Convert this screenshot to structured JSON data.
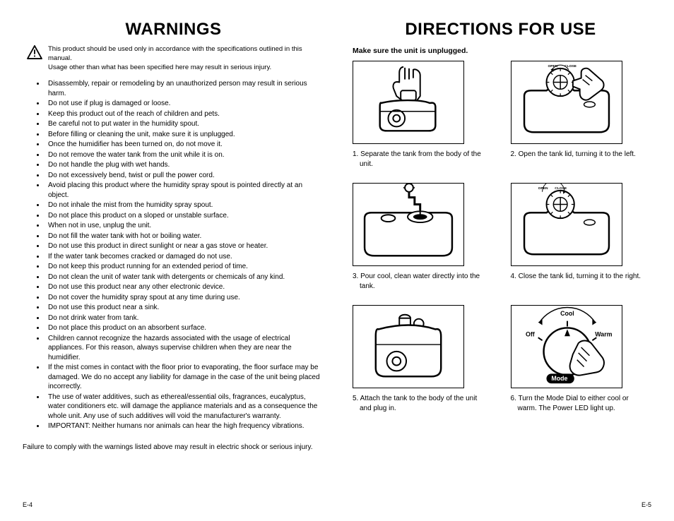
{
  "left": {
    "title": "WARNINGS",
    "intro_line1": "This product should be used only in accordance with the specifications outlined in this manual.",
    "intro_line2": "Usage other than what has been specified here may result in serious injury.",
    "bullets": [
      "Disassembly, repair or remodeling by an unauthorized person may result in serious harm.",
      "Do not use if plug is damaged or loose.",
      "Keep this product out of the reach of children and pets.",
      "Be careful not to put water in the humidity spout.",
      "Before filling or cleaning the unit, make sure it is unplugged.",
      "Once the humidifier has been turned on, do not move it.",
      "Do not remove the water tank from the unit while it is on.",
      "Do not handle the plug with wet hands.",
      "Do not excessively bend, twist or pull the power cord.",
      "Avoid placing this product where the humidity spray spout is pointed directly at an object.",
      "Do not inhale the mist from the humidity spray spout.",
      "Do not place this product on a sloped or unstable surface.",
      "When not in use, unplug the unit.",
      "Do not fill the water tank with hot or boiling water.",
      "Do not use this product in direct sunlight or near a gas stove or heater.",
      "If the water tank becomes cracked or damaged do not use.",
      "Do not keep this product running for an extended period of time.",
      "Do not clean the unit of water tank with detergents or chemicals of any kind.",
      "Do not use this product near any other electronic device.",
      "Do not cover the humidity spray spout at any time during use.",
      "Do not use this product near a sink.",
      "Do not drink water from tank.",
      "Do not place this product on an absorbent surface.",
      "Children cannot recognize the hazards associated with the usage of electrical appliances. For this reason, always supervise children when they are near the humidifier.",
      "If the mist comes in contact with the floor prior to evaporating, the floor surface may be damaged. We do no accept any liability for damage in the case of the unit being placed incorrectly.",
      "The use of water additives, such as ethereal/essential oils, fragrances, eucalyptus, water conditioners etc. will damage the appliance materials and as a consequence the whole unit. Any use of such additives will void the manufacturer's warranty.",
      "IMPORTANT: Neither humans nor animals can hear the high frequency vibrations."
    ],
    "footer": "Failure to comply with the warnings listed above may result in electric shock or serious injury.",
    "page_num": "E-4"
  },
  "right": {
    "title": "DIRECTIONS FOR USE",
    "subtitle": "Make sure the unit is unplugged.",
    "steps": [
      {
        "num": "1.",
        "text": "Separate the tank from the body of the unit."
      },
      {
        "num": "2.",
        "text": "Open the tank lid, turning it to the left."
      },
      {
        "num": "3.",
        "text": "Pour cool, clean water directly into the tank."
      },
      {
        "num": "4.",
        "text": "Close the tank lid, turning it to the right."
      },
      {
        "num": "5.",
        "text": "Attach the tank to the body of the unit and plug in."
      },
      {
        "num": "6.",
        "text": "Turn the Mode Dial to either cool or warm. The Power LED light up."
      }
    ],
    "dial_labels": {
      "off": "Off",
      "cool": "Cool",
      "warm": "Warm",
      "mode": "Mode",
      "open": "OPEN",
      "close": "CLOSE"
    },
    "page_num": "E-5"
  },
  "style": {
    "page_bg": "#ffffff",
    "text_color": "#000000",
    "title_fontsize": 24,
    "body_fontsize": 10,
    "intro_fontsize": 9.5,
    "border_width": 1.5,
    "figure_w": 158,
    "figure_h": 118
  }
}
